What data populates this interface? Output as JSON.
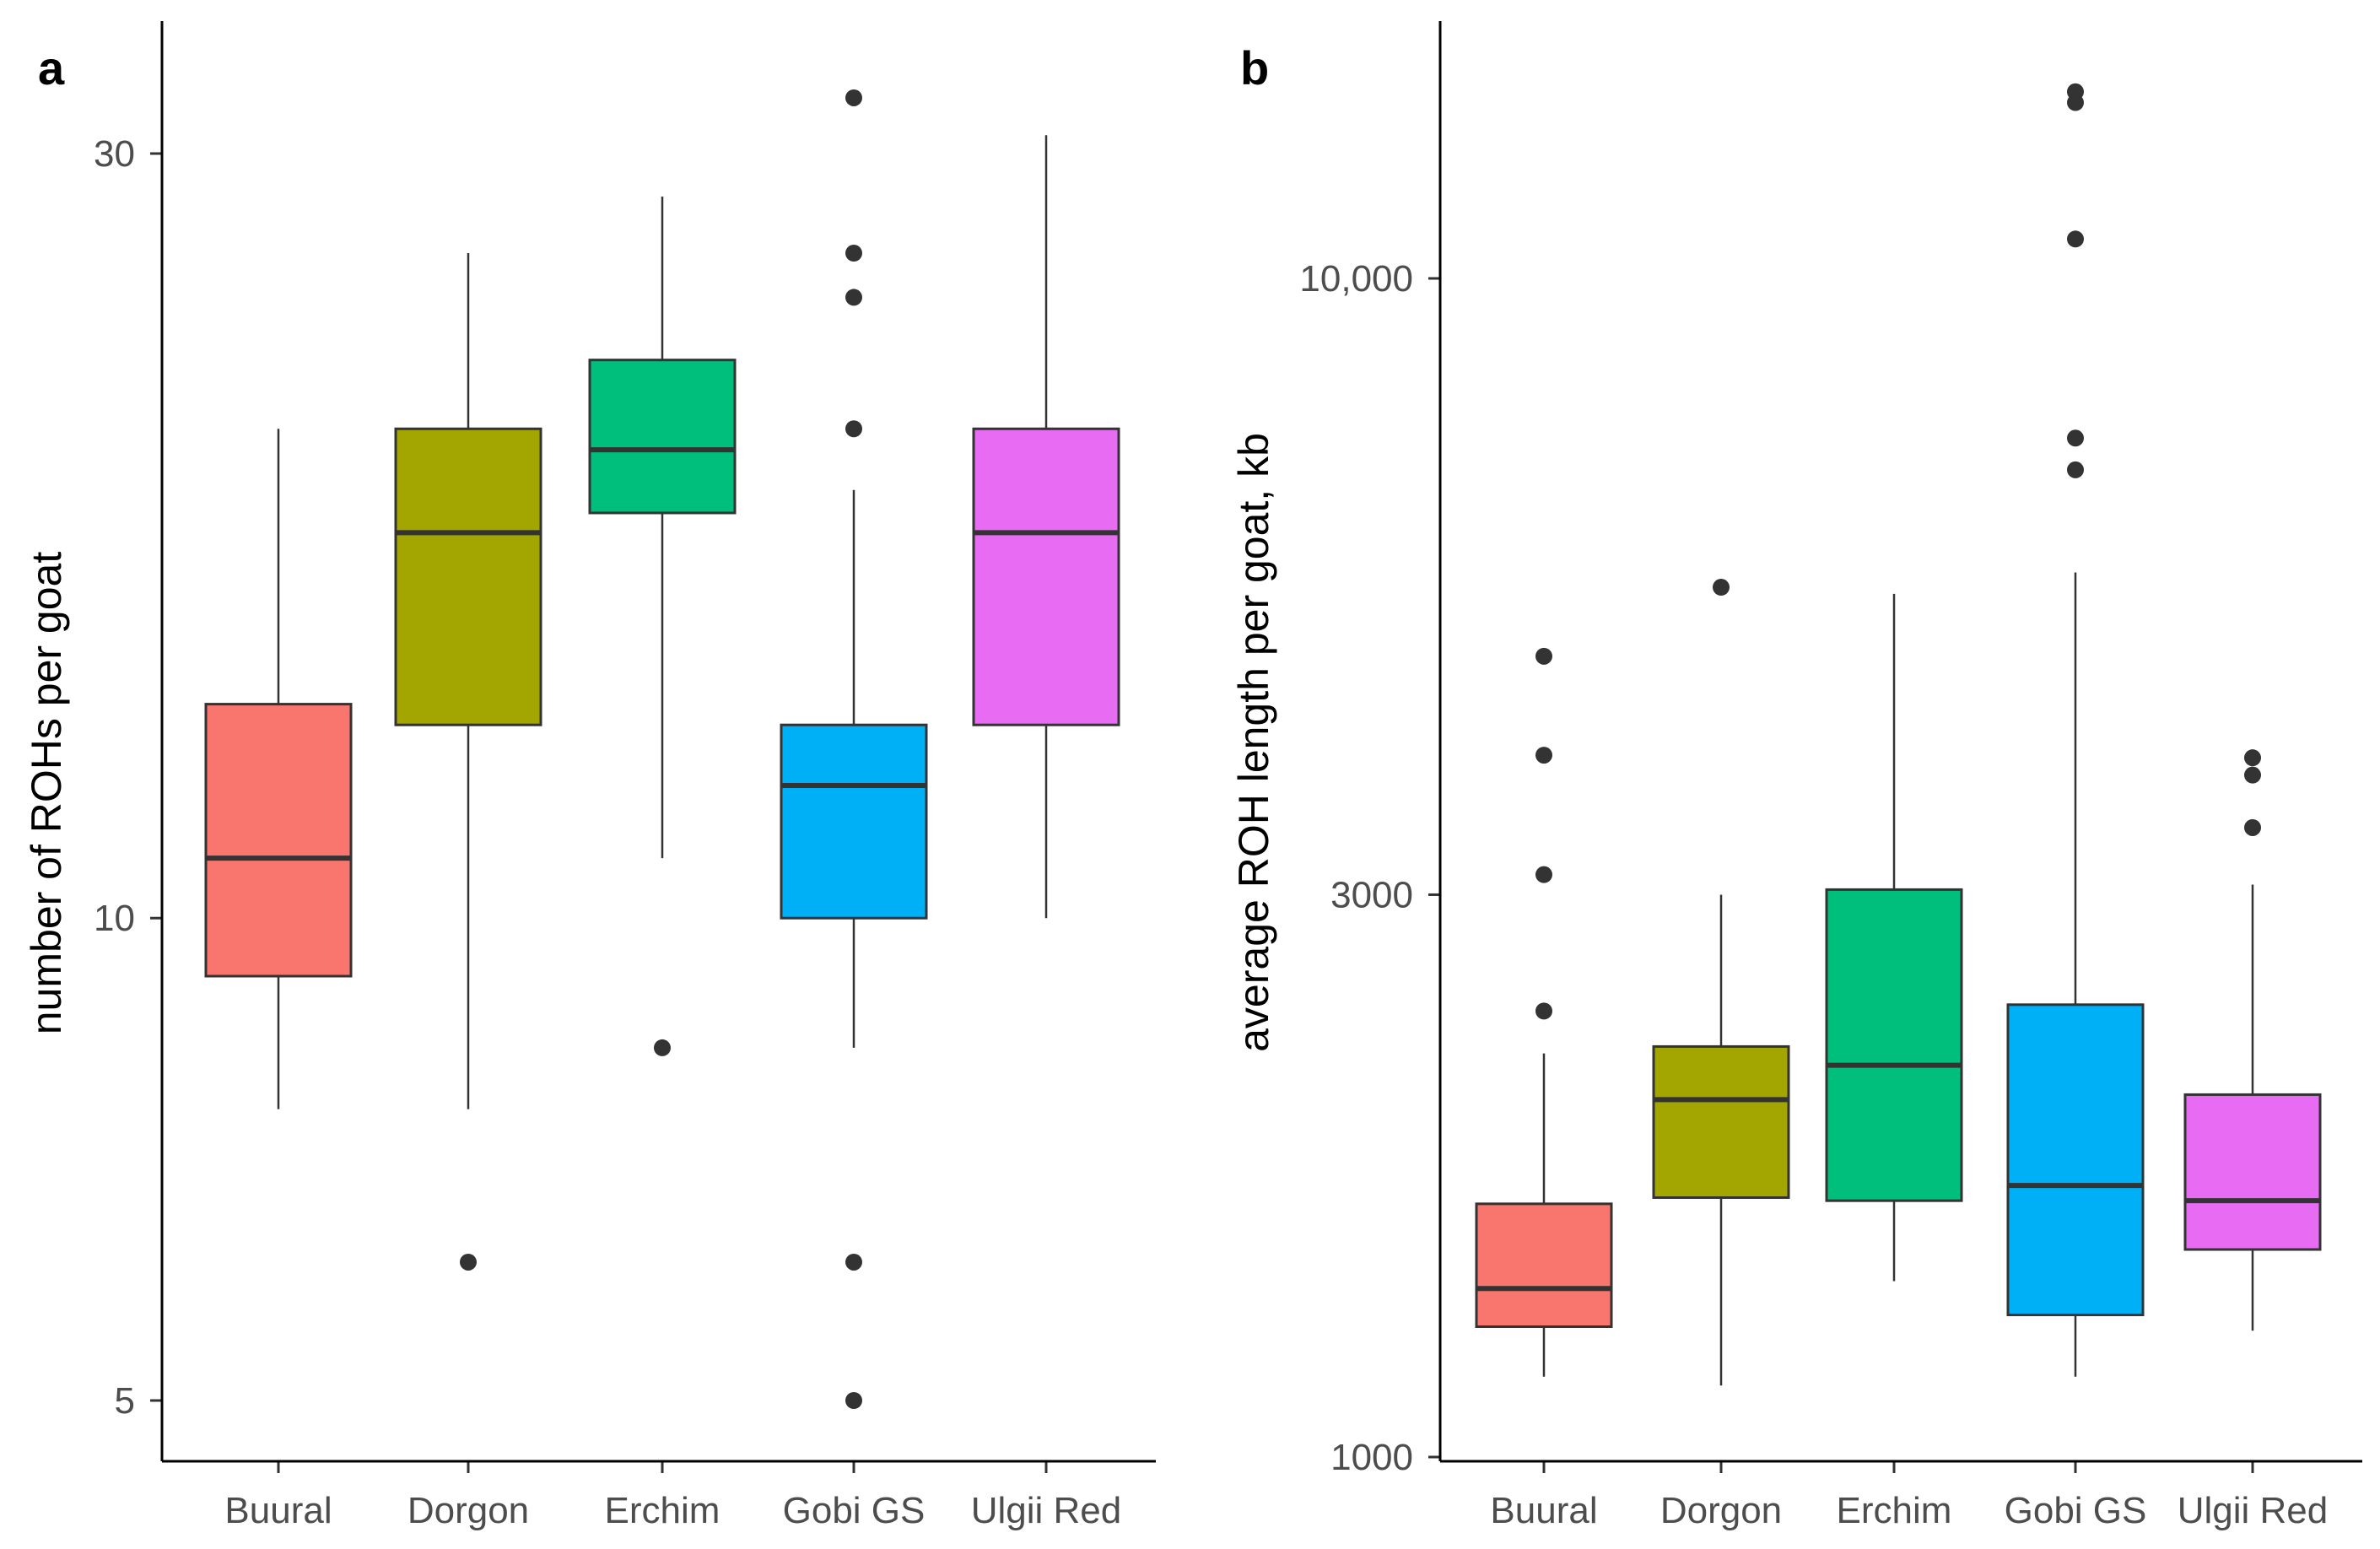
{
  "chart_data": [
    {
      "panel": "a",
      "type": "box",
      "ylabel": "number of ROHs per goat",
      "xlabel": "",
      "yscale": "log",
      "ylim": [
        4.7,
        38
      ],
      "yticks": [
        5,
        10,
        30
      ],
      "ytick_labels": [
        "5",
        "10",
        "30"
      ],
      "categories": [
        "Buural",
        "Dorgon",
        "Erchim",
        "Gobi GS",
        "Ulgii Red"
      ],
      "colors": [
        "#F8766D",
        "#A3A500",
        "#00BF7D",
        "#00B0F6",
        "#E76BF3"
      ],
      "boxes": [
        {
          "q1": 9.2,
          "median": 10.9,
          "q3": 13.6,
          "whisker_low": 7.6,
          "whisker_high": 20.2,
          "outliers": []
        },
        {
          "q1": 13.2,
          "median": 17.4,
          "q3": 20.2,
          "whisker_low": 7.6,
          "whisker_high": 26.0,
          "outliers": [
            6.1
          ]
        },
        {
          "q1": 17.9,
          "median": 19.6,
          "q3": 22.3,
          "whisker_low": 10.9,
          "whisker_high": 28.2,
          "outliers": [
            8.3
          ]
        },
        {
          "q1": 10.0,
          "median": 12.1,
          "q3": 13.2,
          "whisker_low": 8.3,
          "whisker_high": 18.5,
          "outliers": [
            5.0,
            6.1,
            20.2,
            24.4,
            26.0,
            32.5
          ]
        },
        {
          "q1": 13.2,
          "median": 17.4,
          "q3": 20.2,
          "whisker_low": 10.0,
          "whisker_high": 30.8,
          "outliers": []
        }
      ]
    },
    {
      "panel": "b",
      "type": "box",
      "ylabel": "average ROH length per goat, kb",
      "xlabel": "",
      "yscale": "log",
      "ylim": [
        980,
        17500
      ],
      "yticks": [
        1000,
        3000,
        10000
      ],
      "ytick_labels": [
        "1000",
        "3000",
        "10,000"
      ],
      "categories": [
        "Buural",
        "Dorgon",
        "Erchim",
        "Gobi GS",
        "Ulgii Red"
      ],
      "colors": [
        "#F8766D",
        "#A3A500",
        "#00BF7D",
        "#00B0F6",
        "#E76BF3"
      ],
      "boxes": [
        {
          "q1": 1290,
          "median": 1390,
          "q3": 1640,
          "whisker_low": 1170,
          "whisker_high": 2200,
          "outliers": [
            2390,
            3120,
            3940,
            4780
          ]
        },
        {
          "q1": 1660,
          "median": 2010,
          "q3": 2230,
          "whisker_low": 1150,
          "whisker_high": 3000,
          "outliers": [
            5470
          ]
        },
        {
          "q1": 1650,
          "median": 2150,
          "q3": 3030,
          "whisker_low": 1410,
          "whisker_high": 5400,
          "outliers": []
        },
        {
          "q1": 1320,
          "median": 1700,
          "q3": 2420,
          "whisker_low": 1170,
          "whisker_high": 5630,
          "outliers": [
            6880,
            7320,
            10800,
            14100,
            14400
          ]
        },
        {
          "q1": 1500,
          "median": 1650,
          "q3": 2030,
          "whisker_low": 1280,
          "whisker_high": 3060,
          "outliers": [
            3420,
            3790,
            3920
          ]
        }
      ]
    }
  ]
}
